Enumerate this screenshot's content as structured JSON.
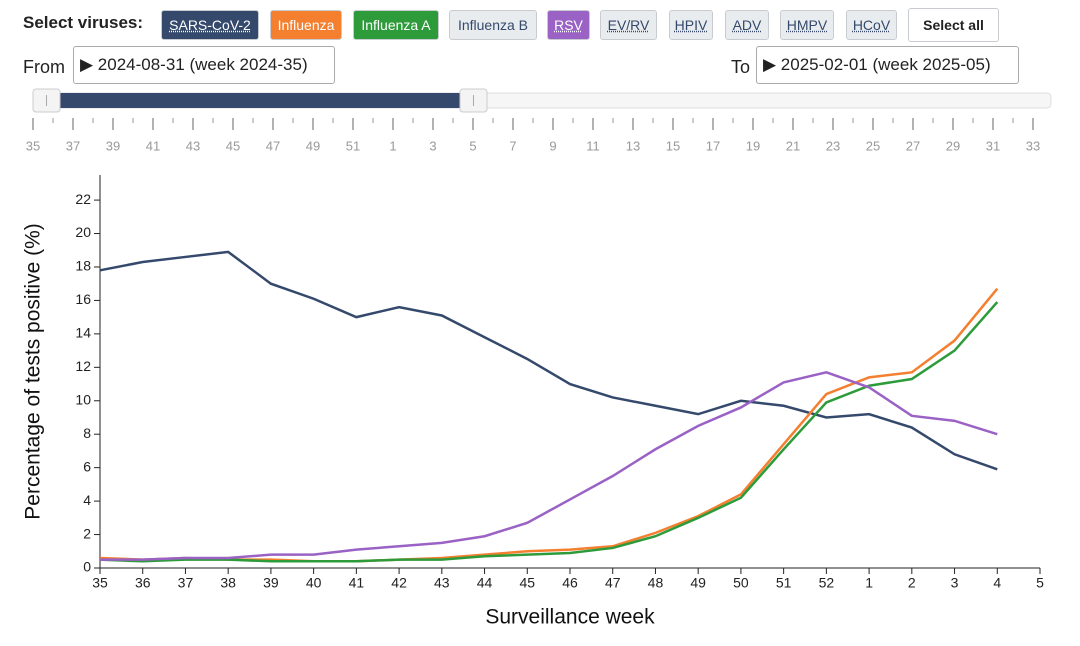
{
  "controls": {
    "select_label": "Select viruses:",
    "virus_buttons": [
      {
        "label": "SARS-CoV-2",
        "color": "#34496b",
        "text_color": "#ffffff"
      },
      {
        "label": "Influenza",
        "color": "#f37f2f",
        "text_color": "#ffffff"
      },
      {
        "label": "Influenza A",
        "color": "#2e9b3b",
        "text_color": "#ffffff"
      },
      {
        "label": "Influenza B",
        "color": "#e9ecef",
        "text_color": "#34496b"
      },
      {
        "label": "RSV",
        "color": "#9a62c5",
        "text_color": "#ffffff"
      },
      {
        "label": "EV/RV",
        "color": "#e9ecef",
        "text_color": "#34496b"
      },
      {
        "label": "HPIV",
        "color": "#e9ecef",
        "text_color": "#34496b"
      },
      {
        "label": "ADV",
        "color": "#e9ecef",
        "text_color": "#34496b"
      },
      {
        "label": "HMPV",
        "color": "#e9ecef",
        "text_color": "#34496b"
      },
      {
        "label": "HCoV",
        "color": "#e9ecef",
        "text_color": "#34496b"
      }
    ],
    "select_all": "Select all",
    "from_label": "From",
    "from_value": "▶ 2024-08-31 (week 2024-35)",
    "to_label": "To",
    "to_value": "▶ 2025-02-01 (week 2025-05)",
    "slider_ticks": [
      "35",
      "37",
      "39",
      "41",
      "43",
      "45",
      "47",
      "49",
      "51",
      "1",
      "3",
      "5",
      "7",
      "9",
      "11",
      "13",
      "15",
      "17",
      "19",
      "21",
      "23",
      "25",
      "27",
      "29",
      "31",
      "33"
    ]
  },
  "chart_data": {
    "type": "line",
    "y_label": "Percentage of tests positive (%)",
    "x_label": "Surveillance week",
    "categories": [
      "35",
      "36",
      "37",
      "38",
      "39",
      "40",
      "41",
      "42",
      "43",
      "44",
      "45",
      "46",
      "47",
      "48",
      "49",
      "50",
      "51",
      "52",
      "1",
      "2",
      "3",
      "4",
      "5"
    ],
    "ylim": [
      0,
      23.5
    ],
    "yticks": [
      0,
      2,
      4,
      6,
      8,
      10,
      12,
      14,
      16,
      18,
      20,
      22
    ],
    "series": [
      {
        "name": "SARS-CoV-2",
        "color": "#34496b",
        "values": [
          17.8,
          18.3,
          18.6,
          18.9,
          17.0,
          16.1,
          15.0,
          15.6,
          15.1,
          13.8,
          12.5,
          11.0,
          10.2,
          9.7,
          9.2,
          10.0,
          9.7,
          9.0,
          9.2,
          8.4,
          6.8,
          5.9,
          null
        ]
      },
      {
        "name": "Influenza",
        "color": "#f37f2f",
        "values": [
          0.6,
          0.5,
          0.6,
          0.5,
          0.5,
          0.4,
          0.4,
          0.5,
          0.6,
          0.8,
          1.0,
          1.1,
          1.3,
          2.1,
          3.1,
          4.4,
          7.4,
          10.4,
          11.4,
          11.7,
          13.6,
          16.7,
          null
        ]
      },
      {
        "name": "Influenza A",
        "color": "#2e9b3b",
        "values": [
          0.5,
          0.4,
          0.5,
          0.5,
          0.4,
          0.4,
          0.4,
          0.5,
          0.5,
          0.7,
          0.8,
          0.9,
          1.2,
          1.9,
          3.0,
          4.2,
          7.1,
          9.9,
          10.9,
          11.3,
          13.0,
          15.9,
          null
        ]
      },
      {
        "name": "RSV",
        "color": "#9a62c5",
        "values": [
          0.5,
          0.5,
          0.6,
          0.6,
          0.8,
          0.8,
          1.1,
          1.3,
          1.5,
          1.9,
          2.7,
          4.1,
          5.5,
          7.1,
          8.5,
          9.6,
          11.1,
          11.7,
          10.8,
          9.1,
          8.8,
          8.0,
          null
        ]
      }
    ]
  }
}
